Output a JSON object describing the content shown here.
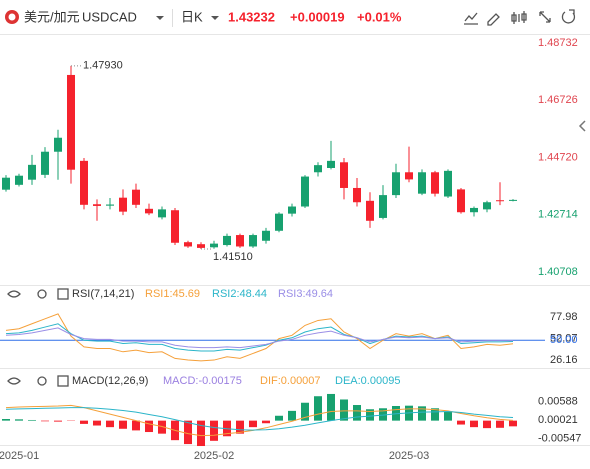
{
  "header": {
    "pair": "美元/加元",
    "symbol": "USDCAD",
    "period": "日K",
    "price": "1.43232",
    "change": "+0.00019",
    "change_pct": "+0.01%"
  },
  "chart_data": [
    {
      "type": "candlestick",
      "categories": [
        null,
        "2025-01",
        null,
        null,
        null,
        null,
        null,
        null,
        null,
        null,
        null,
        null,
        null,
        null,
        null,
        null,
        "2025-02",
        null,
        null,
        null,
        null,
        null,
        null,
        null,
        null,
        null,
        null,
        null,
        null,
        null,
        null,
        "2025-03",
        null,
        null,
        null,
        null,
        null,
        null,
        null,
        null
      ],
      "open": [
        1.4359,
        1.4376,
        1.4394,
        1.4411,
        1.4492,
        1.4761,
        1.446,
        1.4308,
        1.4303,
        1.4331,
        1.4359,
        1.4292,
        1.4262,
        1.4287,
        1.4175,
        1.4168,
        1.4157,
        1.4165,
        1.42,
        1.416,
        1.418,
        1.4215,
        1.4275,
        1.43,
        1.442,
        1.4435,
        1.4455,
        1.4365,
        1.432,
        1.426,
        1.434,
        1.442,
        1.4345,
        1.442,
        1.4335,
        1.436,
        1.428,
        1.429,
        1.4322,
        1.432
      ],
      "high": [
        1.441,
        1.4415,
        1.4481,
        1.4508,
        1.4569,
        1.4793,
        1.447,
        1.4325,
        1.433,
        1.436,
        1.438,
        1.431,
        1.43,
        1.4295,
        1.418,
        1.4175,
        1.418,
        1.4205,
        1.4205,
        1.4205,
        1.4225,
        1.428,
        1.431,
        1.441,
        1.4455,
        1.453,
        1.447,
        1.44,
        1.435,
        1.4375,
        1.445,
        1.451,
        1.443,
        1.4425,
        1.443,
        1.4365,
        1.43,
        1.432,
        1.4385,
        1.4326
      ],
      "low": [
        1.4352,
        1.437,
        1.4376,
        1.44,
        1.4394,
        1.438,
        1.429,
        1.425,
        1.429,
        1.427,
        1.4295,
        1.427,
        1.4255,
        1.4165,
        1.4155,
        1.4151,
        1.4152,
        1.416,
        1.4155,
        1.4155,
        1.417,
        1.421,
        1.4265,
        1.4295,
        1.4405,
        1.443,
        1.4325,
        1.43,
        1.4225,
        1.4255,
        1.433,
        1.4385,
        1.434,
        1.4335,
        1.433,
        1.4275,
        1.4265,
        1.428,
        1.4305,
        1.4318
      ],
      "close": [
        1.4401,
        1.4408,
        1.4446,
        1.4492,
        1.4541,
        1.4429,
        1.4306,
        1.4302,
        1.4307,
        1.4282,
        1.4306,
        1.4276,
        1.429,
        1.4173,
        1.416,
        1.4155,
        1.417,
        1.4197,
        1.416,
        1.42,
        1.4215,
        1.4275,
        1.43,
        1.4405,
        1.4445,
        1.446,
        1.4365,
        1.4315,
        1.425,
        1.434,
        1.442,
        1.4395,
        1.442,
        1.4345,
        1.4425,
        1.428,
        1.4295,
        1.4315,
        1.432,
        1.43232
      ],
      "up_color": "#17a16f",
      "down_color": "#f5222d",
      "ylim": [
        1.4025,
        1.4901
      ],
      "yticks": [
        1.48732,
        1.46726,
        {
          "value": 1.4472,
          "label": "1.44720"
        },
        1.42714,
        1.40708
      ],
      "annotations": [
        {
          "label": "1.47930",
          "value": 1.4793
        },
        {
          "label": "1.41510",
          "value": 1.4151
        }
      ]
    },
    {
      "type": "line",
      "title": "RSI(7,14,21)",
      "series": [
        {
          "name": "RSI1:45.69",
          "color": "#f5a03a",
          "values": [
            62,
            64,
            70,
            76,
            82,
            55,
            42,
            40,
            40,
            36,
            38,
            35,
            36,
            28,
            26,
            25,
            26,
            30,
            28,
            34,
            40,
            52,
            56,
            68,
            74,
            76,
            60,
            52,
            40,
            50,
            58,
            55,
            58,
            52,
            56,
            40,
            42,
            45,
            44,
            45.69
          ]
        },
        {
          "name": "RSI2:48.44",
          "color": "#2bb5c9",
          "values": [
            58,
            59,
            62,
            66,
            70,
            58,
            50,
            49,
            49,
            46,
            47,
            45,
            45,
            40,
            38,
            37,
            37,
            39,
            38,
            41,
            44,
            50,
            53,
            60,
            64,
            66,
            57,
            53,
            46,
            51,
            55,
            54,
            55,
            52,
            54,
            46,
            47,
            48,
            48,
            48.44
          ]
        },
        {
          "name": "RSI3:49.64",
          "color": "#9a8ee6",
          "values": [
            56,
            57,
            59,
            62,
            65,
            57,
            52,
            51,
            51,
            49,
            49,
            48,
            48,
            44,
            42,
            41,
            41,
            42,
            41,
            43,
            45,
            49,
            51,
            56,
            59,
            61,
            56,
            53,
            48,
            51,
            54,
            53,
            54,
            52,
            53,
            48,
            49,
            49.5,
            49.5,
            49.64
          ]
        }
      ],
      "ylim": [
        20,
        100
      ],
      "yticks": [
        77.98,
        52.07,
        {
          "value": 50,
          "label": "50.00"
        },
        26.16
      ],
      "ref_line": 50,
      "ref_color": "#2f6ee8"
    },
    {
      "type": "macd",
      "title": "MACD(12,26,9)",
      "series": [
        {
          "name": "MACD:-0.00175",
          "color": "#9a7fe0",
          "values": [
            0.0005,
            0.0004,
            0.0002,
            -0.0002,
            -0.0003,
            -0.0001,
            -0.001,
            -0.0015,
            -0.002,
            -0.0025,
            -0.003,
            -0.0035,
            -0.004,
            -0.006,
            -0.0072,
            -0.0078,
            -0.0062,
            -0.0048,
            -0.004,
            -0.002,
            -0.0008,
            0.0015,
            0.003,
            0.0055,
            0.0075,
            0.0082,
            0.0065,
            0.0048,
            0.0035,
            0.0038,
            0.0045,
            0.0046,
            0.0044,
            0.0038,
            0.0028,
            -0.0012,
            -0.002,
            -0.0023,
            -0.0022,
            -0.00175
          ]
        },
        {
          "name": "DIF:0.00007",
          "color": "#f5a03a",
          "values": [
            0.004,
            0.0042,
            0.0043,
            0.0044,
            0.0045,
            0.0047,
            0.004,
            0.003,
            0.002,
            0.001,
            0.0,
            -0.001,
            -0.0018,
            -0.003,
            -0.004,
            -0.0046,
            -0.0045,
            -0.004,
            -0.0036,
            -0.003,
            -0.0022,
            -0.0012,
            -0.0002,
            0.001,
            0.002,
            0.0028,
            0.003,
            0.003,
            0.0028,
            0.003,
            0.0034,
            0.0036,
            0.0036,
            0.0034,
            0.003,
            0.0022,
            0.0015,
            0.0009,
            0.0004,
            7e-05
          ]
        },
        {
          "name": "DEA:0.00095",
          "color": "#2bb5c9",
          "values": [
            0.0035,
            0.0036,
            0.0037,
            0.0038,
            0.0039,
            0.004,
            0.004,
            0.0038,
            0.0035,
            0.0031,
            0.0026,
            0.0019,
            0.0012,
            0.0003,
            -0.0006,
            -0.0015,
            -0.0021,
            -0.0025,
            -0.0028,
            -0.0029,
            -0.0028,
            -0.0025,
            -0.002,
            -0.0014,
            -0.0007,
            0.0,
            0.0006,
            0.0011,
            0.0014,
            0.0017,
            0.0021,
            0.0024,
            0.0026,
            0.0027,
            0.0028,
            0.0025,
            0.002,
            0.0016,
            0.0012,
            0.00095
          ]
        }
      ],
      "up_color": "#17a16f",
      "down_color": "#f5222d",
      "ylim": [
        -0.0081,
        0.0088
      ],
      "yticks": [
        0.00588,
        0.00021,
        -0.00547
      ]
    }
  ]
}
